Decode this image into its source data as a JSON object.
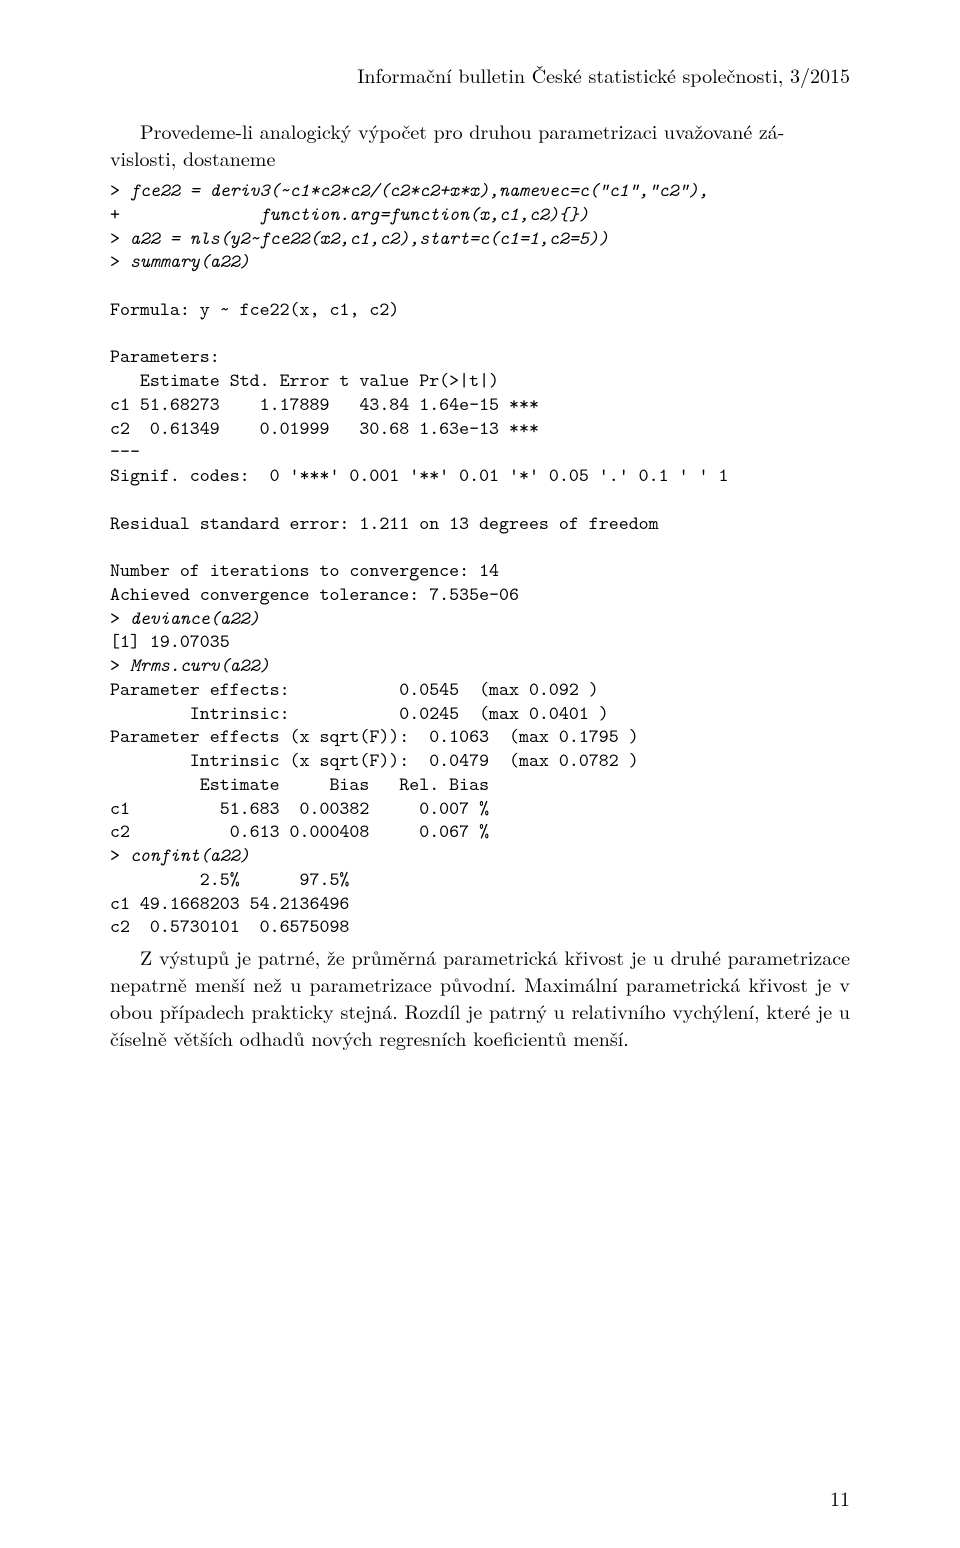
{
  "header": "Informační bulletin České statistické společnosti, 3/2015",
  "intro": {
    "line1": "Provedeme-li analogický výpočet pro druhou parametrizaci uvažované zá-",
    "line2": "vislosti, dostaneme"
  },
  "code": {
    "l01a": "> ",
    "l01b": "fce22 = deriv3(~c1*c2*c2/(c2*c2+x*x),namevec=c(\"c1\",\"c2\"),",
    "l02a": "+              ",
    "l02b": "function.arg=function(x,c1,c2){})",
    "l03a": "> ",
    "l03b": "a22 = nls(y2~fce22(x2,c1,c2),start=c(c1=1,c2=5))",
    "l04a": "> ",
    "l04b": "summary(a22)",
    "l06": "Formula: y ~ fce22(x, c1, c2)",
    "l08": "Parameters:",
    "l09": "   Estimate Std. Error t value Pr(>|t|)",
    "l10": "c1 51.68273    1.17889   43.84 1.64e-15 ***",
    "l11": "c2  0.61349    0.01999   30.68 1.63e-13 ***",
    "l12": "---",
    "l13": "Signif. codes:  0 '***' 0.001 '**' 0.01 '*' 0.05 '.' 0.1 ' ' 1",
    "l15": "Residual standard error: 1.211 on 13 degrees of freedom",
    "l17": "Number of iterations to convergence: 14",
    "l18": "Achieved convergence tolerance: 7.535e-06",
    "l19a": "> ",
    "l19b": "deviance(a22)",
    "l20": "[1] 19.07035",
    "l21a": "> ",
    "l21b": "Mrms.curv(a22)",
    "l22": "Parameter effects:           0.0545  (max 0.092 )",
    "l23": "        Intrinsic:           0.0245  (max 0.0401 )",
    "l24": "Parameter effects (x sqrt(F)):  0.1063  (max 0.1795 )",
    "l25": "        Intrinsic (x sqrt(F)):  0.0479  (max 0.0782 )",
    "l26": "         Estimate     Bias   Rel. Bias",
    "l27": "c1         51.683  0.00382     0.007 %",
    "l28": "c2          0.613 0.000408     0.067 %",
    "l29a": "> ",
    "l29b": "confint(a22)",
    "l30": "         2.5%      97.5%",
    "l31": "c1 49.1668203 54.2136496",
    "l32": "c2  0.5730101  0.6575098"
  },
  "outtro": {
    "p1": "Z výstupů je patrné, že průměrná parametrická křivost je u druhé parametrizace nepatrně menší než u parametrizace původní. Maximální parametrická křivost je v obou případech prakticky stejná. Rozdíl je patrný u relativního vychýlení, které je u číselně větších odhadů nových regresních koeficientů menší."
  },
  "pagenum": "11"
}
